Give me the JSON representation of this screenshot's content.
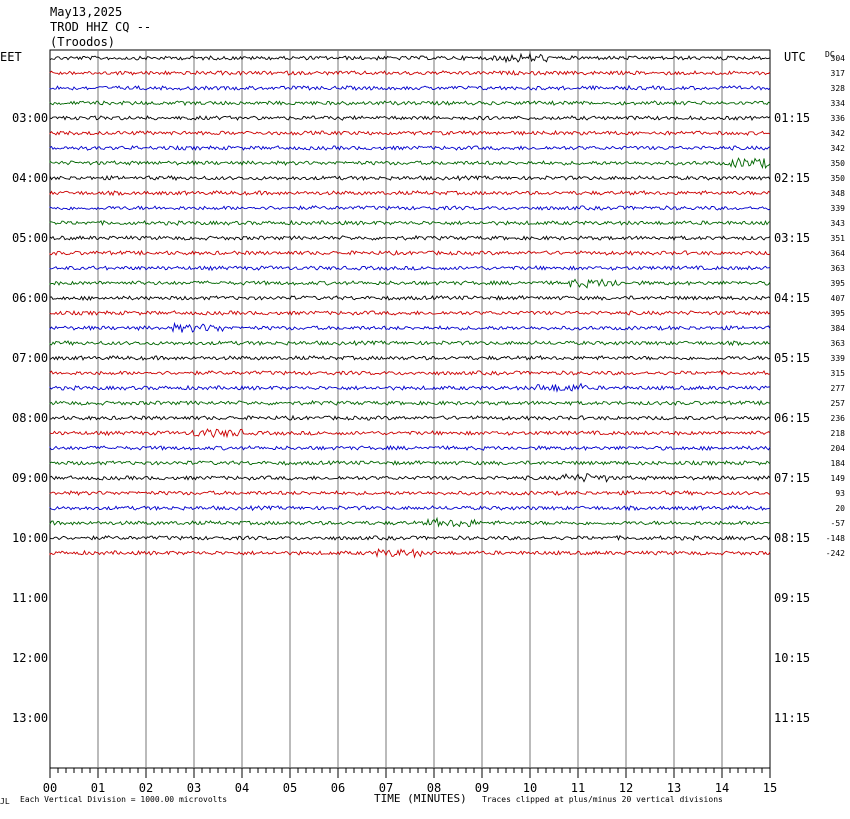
{
  "header": {
    "date": "May13,2025",
    "station": "TROD HHZ CQ --",
    "location": "(Troodos)"
  },
  "left_axis_title": "EET",
  "right_axis_title": "UTC",
  "dc_title": "DC",
  "footer": {
    "left_mark": "JL",
    "scale_note": "Each Vertical Division = 1000.00 microvolts",
    "x_title": "TIME (MINUTES)",
    "clip_note": "Traces clipped at plus/minus 20 vertical divisions"
  },
  "chart_data": {
    "type": "line",
    "title": "TROD HHZ CQ --",
    "xlabel": "TIME (MINUTES)",
    "ylabel": "",
    "xlim": [
      0,
      15
    ],
    "x_ticks": [
      "00",
      "01",
      "02",
      "03",
      "04",
      "05",
      "06",
      "07",
      "08",
      "09",
      "10",
      "11",
      "12",
      "13",
      "14",
      "15"
    ],
    "left_hour_labels": [
      "03:00",
      "04:00",
      "05:00",
      "06:00",
      "07:00",
      "08:00",
      "09:00",
      "10:00",
      "11:00",
      "12:00",
      "13:00"
    ],
    "right_hour_labels": [
      "01:15",
      "02:15",
      "03:15",
      "04:15",
      "05:15",
      "06:15",
      "07:15",
      "08:15",
      "09:15",
      "10:15",
      "11:15"
    ],
    "trace_colors": [
      "#000000",
      "#cc0000",
      "#0000cc",
      "#006600"
    ],
    "dc_offsets": [
      304,
      317,
      328,
      334,
      336,
      342,
      342,
      350,
      350,
      348,
      339,
      343,
      351,
      364,
      363,
      395,
      407,
      395,
      384,
      363,
      339,
      315,
      277,
      257,
      236,
      218,
      204,
      184,
      149,
      93,
      20,
      -57,
      -148,
      -242
    ],
    "trace_count": 34,
    "clip_divisions": 20,
    "microvolts_per_division": 1000.0
  }
}
